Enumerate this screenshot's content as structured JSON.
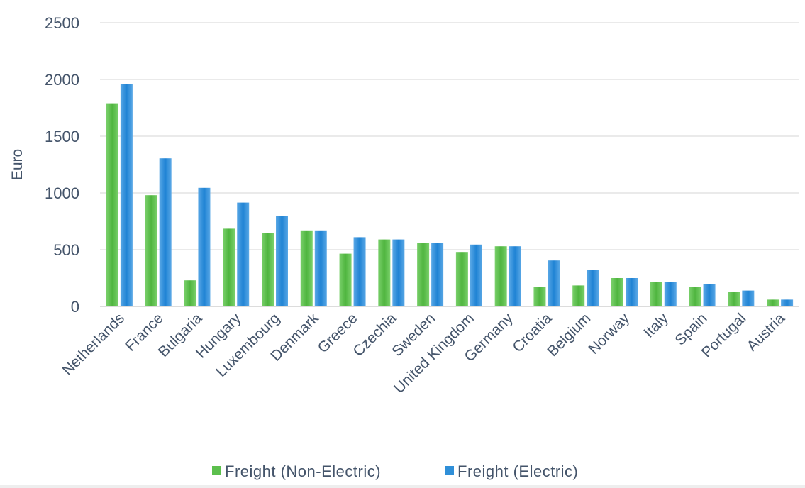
{
  "chart_data": {
    "type": "bar",
    "title": "",
    "xlabel": "",
    "ylabel": "Euro",
    "ylim": [
      0,
      2500
    ],
    "yticks": [
      0,
      500,
      1000,
      1500,
      2000,
      2500
    ],
    "grid": true,
    "legend_position": "bottom",
    "categories": [
      "Netherlands",
      "France",
      "Bulgaria",
      "Hungary",
      "Luxembourg",
      "Denmark",
      "Greece",
      "Czechia",
      "Sweden",
      "United Kingdom",
      "Germany",
      "Croatia",
      "Belgium",
      "Norway",
      "Italy",
      "Spain",
      "Portugal",
      "Austria"
    ],
    "series": [
      {
        "name": "Freight (Non-Electric)",
        "color": "#5cbf4d",
        "values": [
          1790,
          980,
          230,
          685,
          650,
          670,
          465,
          590,
          560,
          480,
          530,
          170,
          185,
          250,
          215,
          170,
          125,
          60
        ]
      },
      {
        "name": "Freight (Electric)",
        "color": "#2f8fd8",
        "values": [
          1960,
          1305,
          1045,
          915,
          795,
          670,
          610,
          590,
          560,
          545,
          530,
          405,
          325,
          250,
          215,
          200,
          140,
          60
        ]
      }
    ]
  }
}
